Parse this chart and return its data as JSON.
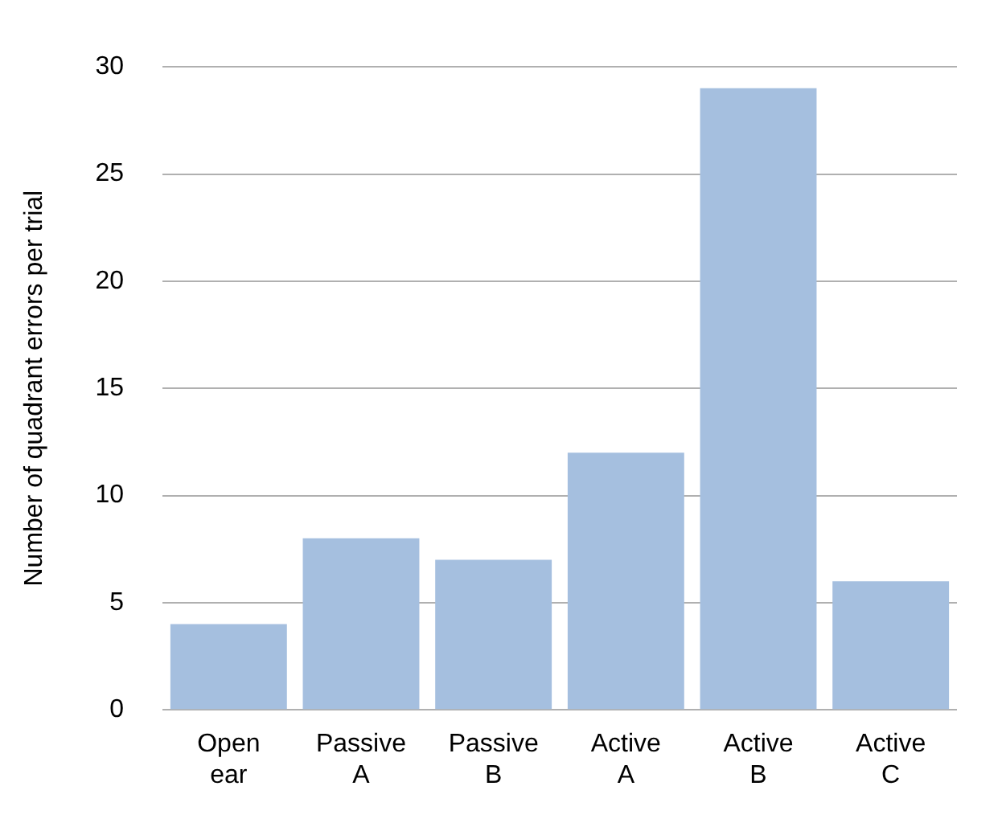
{
  "chart_data": {
    "type": "bar",
    "ylabel": "Number of quadrant errors per trial",
    "categories": [
      "Open ear",
      "Passive A",
      "Passive B",
      "Active A",
      "Active B",
      "Active C"
    ],
    "values": [
      4,
      8,
      7,
      12,
      29,
      6
    ],
    "color": "#a5bfdf",
    "ylim": [
      0,
      30
    ],
    "yticks": [
      0,
      5,
      10,
      15,
      20,
      25,
      30
    ],
    "grid": "y"
  }
}
